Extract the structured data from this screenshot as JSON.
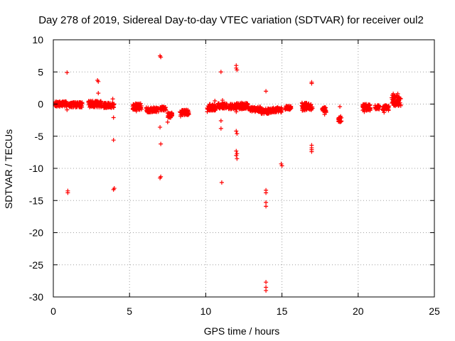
{
  "chart_data": {
    "type": "scatter",
    "title": "Day 278 of 2019, Sidereal Day-to-day VTEC variation (SDTVAR) for receiver oul2",
    "xlabel": "GPS time / hours",
    "ylabel": "SDTVAR / TECUs",
    "xlim": [
      0,
      25
    ],
    "ylim": [
      -30,
      10
    ],
    "xticks": [
      0,
      5,
      10,
      15,
      20,
      25
    ],
    "xtick_labels": [
      "0",
      "5",
      "10",
      "15",
      "20",
      "25"
    ],
    "yticks": [
      10,
      5,
      0,
      -5,
      -10,
      -15,
      -20,
      -25,
      -30
    ],
    "ytick_labels": [
      "10",
      "5",
      "0",
      "-5",
      "-10",
      "-15",
      "-20",
      "-25",
      "-30"
    ],
    "grid": true,
    "marker": "+",
    "color": "#ff0000",
    "clusters": [
      {
        "x0": 0.1,
        "x1": 0.9,
        "y": 0.0,
        "spread": 0.4
      },
      {
        "x0": 1.0,
        "x1": 1.9,
        "y": -0.1,
        "spread": 0.4
      },
      {
        "x0": 2.3,
        "x1": 3.2,
        "y": 0.0,
        "spread": 0.5
      },
      {
        "x0": 3.3,
        "x1": 4.0,
        "y": -0.2,
        "spread": 0.4
      },
      {
        "x0": 5.2,
        "x1": 5.8,
        "y": -0.4,
        "spread": 0.5
      },
      {
        "x0": 6.1,
        "x1": 6.9,
        "y": -0.9,
        "spread": 0.4
      },
      {
        "x0": 7.0,
        "x1": 7.4,
        "y": -0.7,
        "spread": 0.3
      },
      {
        "x0": 7.5,
        "x1": 7.8,
        "y": -1.7,
        "spread": 0.4
      },
      {
        "x0": 8.3,
        "x1": 8.9,
        "y": -1.3,
        "spread": 0.4
      },
      {
        "x0": 10.1,
        "x1": 10.7,
        "y": -0.5,
        "spread": 0.5
      },
      {
        "x0": 10.8,
        "x1": 11.4,
        "y": -0.3,
        "spread": 0.4
      },
      {
        "x0": 11.5,
        "x1": 12.0,
        "y": -0.4,
        "spread": 0.4
      },
      {
        "x0": 12.0,
        "x1": 12.8,
        "y": -0.3,
        "spread": 0.5
      },
      {
        "x0": 12.9,
        "x1": 13.6,
        "y": -0.8,
        "spread": 0.4
      },
      {
        "x0": 13.6,
        "x1": 14.3,
        "y": -1.1,
        "spread": 0.4
      },
      {
        "x0": 14.3,
        "x1": 15.0,
        "y": -0.9,
        "spread": 0.4
      },
      {
        "x0": 15.2,
        "x1": 15.6,
        "y": -0.6,
        "spread": 0.3
      },
      {
        "x0": 16.3,
        "x1": 17.0,
        "y": -0.4,
        "spread": 0.6
      },
      {
        "x0": 17.6,
        "x1": 17.9,
        "y": -0.9,
        "spread": 0.4
      },
      {
        "x0": 18.7,
        "x1": 18.9,
        "y": -2.4,
        "spread": 0.4
      },
      {
        "x0": 20.3,
        "x1": 20.8,
        "y": -0.5,
        "spread": 0.5
      },
      {
        "x0": 21.1,
        "x1": 21.4,
        "y": -0.5,
        "spread": 0.3
      },
      {
        "x0": 21.6,
        "x1": 22.0,
        "y": -0.6,
        "spread": 0.4
      },
      {
        "x0": 22.2,
        "x1": 22.8,
        "y": 0.5,
        "spread": 0.9
      }
    ],
    "points": [
      [
        0.9,
        4.9
      ],
      [
        0.9,
        -0.9
      ],
      [
        0.95,
        -13.5
      ],
      [
        0.95,
        -13.8
      ],
      [
        2.9,
        3.7
      ],
      [
        2.95,
        3.5
      ],
      [
        2.95,
        1.7
      ],
      [
        3.9,
        0.8
      ],
      [
        3.95,
        -2.1
      ],
      [
        3.95,
        -5.6
      ],
      [
        3.95,
        -13.3
      ],
      [
        4.0,
        -13.1
      ],
      [
        5.45,
        -1.1
      ],
      [
        5.6,
        -0.8
      ],
      [
        7.0,
        7.5
      ],
      [
        7.05,
        7.3
      ],
      [
        7.0,
        -3.6
      ],
      [
        7.05,
        -6.2
      ],
      [
        7.05,
        -11.3
      ],
      [
        7.0,
        -11.5
      ],
      [
        7.5,
        -2.8
      ],
      [
        7.7,
        -2.1
      ],
      [
        8.35,
        -1.9
      ],
      [
        10.1,
        -1.2
      ],
      [
        10.4,
        -1.0
      ],
      [
        10.6,
        0.5
      ],
      [
        11.0,
        5.0
      ],
      [
        11.0,
        -2.6
      ],
      [
        11.0,
        -3.8
      ],
      [
        11.05,
        -12.2
      ],
      [
        11.1,
        0.6
      ],
      [
        12.0,
        6.0
      ],
      [
        12.0,
        5.6
      ],
      [
        12.05,
        5.3
      ],
      [
        12.0,
        -1.2
      ],
      [
        12.0,
        -4.2
      ],
      [
        12.05,
        -4.6
      ],
      [
        12.0,
        -7.3
      ],
      [
        12.05,
        -7.7
      ],
      [
        12.0,
        -8.0
      ],
      [
        12.05,
        -8.5
      ],
      [
        13.95,
        2.0
      ],
      [
        13.95,
        -13.4
      ],
      [
        13.95,
        -13.8
      ],
      [
        13.95,
        -15.3
      ],
      [
        13.95,
        -15.9
      ],
      [
        13.95,
        -27.7
      ],
      [
        13.95,
        -28.5
      ],
      [
        13.95,
        -29.0
      ],
      [
        14.95,
        -9.3
      ],
      [
        15.0,
        -9.6
      ],
      [
        16.95,
        3.2
      ],
      [
        16.95,
        3.4
      ],
      [
        16.95,
        -6.4
      ],
      [
        16.95,
        -6.8
      ],
      [
        16.95,
        -7.1
      ],
      [
        16.95,
        -7.4
      ],
      [
        17.8,
        -1.6
      ],
      [
        18.8,
        -0.4
      ],
      [
        18.85,
        -1.9
      ],
      [
        20.4,
        -1.2
      ],
      [
        21.7,
        -1.3
      ],
      [
        22.3,
        1.6
      ],
      [
        22.6,
        1.6
      ]
    ]
  }
}
